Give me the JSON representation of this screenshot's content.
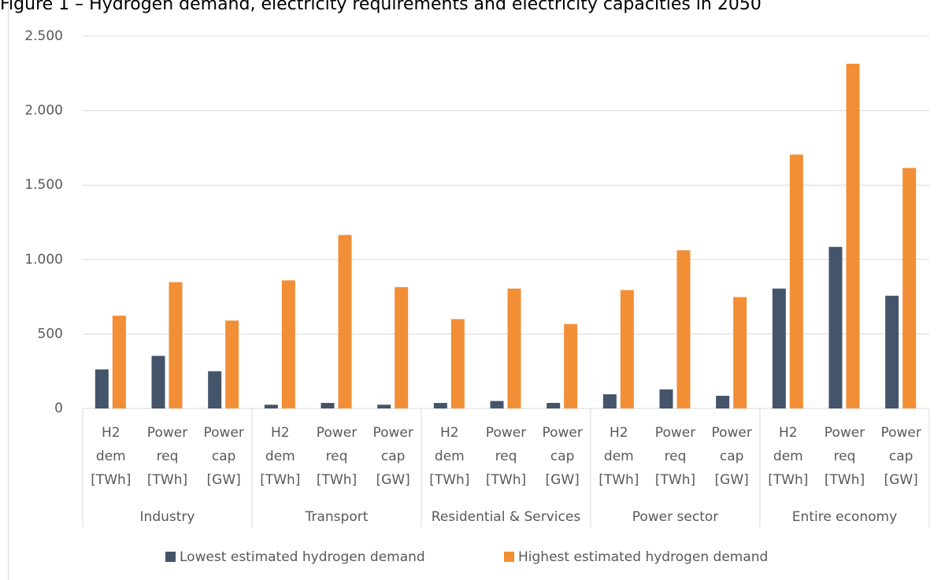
{
  "chart_data": {
    "type": "bar",
    "title": "Figure 1 – Hydrogen demand, electricity requirements and electricity capacities in 2050",
    "groups": [
      "Industry",
      "Transport",
      "Residential & Services",
      "Power sector",
      "Entire economy"
    ],
    "categories": [
      "H2 dem [TWh]",
      "Power req [TWh]",
      "Power cap [GW]",
      "H2 dem [TWh]",
      "Power req [TWh]",
      "Power cap [GW]",
      "H2 dem [TWh]",
      "Power req [TWh]",
      "Power cap [GW]",
      "H2 dem [TWh]",
      "Power req [TWh]",
      "Power cap [GW]",
      "H2 dem [TWh]",
      "Power req [TWh]",
      "Power cap [GW]"
    ],
    "series": [
      {
        "name": "Lowest estimated hydrogen demand",
        "color": "#44546a",
        "values": [
          262,
          353,
          250,
          25,
          37,
          25,
          37,
          50,
          37,
          95,
          128,
          85,
          805,
          1085,
          757
        ]
      },
      {
        "name": "Highest estimated hydrogen demand",
        "color": "#f28e35",
        "values": [
          623,
          848,
          590,
          860,
          1165,
          815,
          600,
          805,
          567,
          795,
          1062,
          748,
          1705,
          2315,
          1615
        ]
      }
    ],
    "ylim": [
      0,
      2500
    ],
    "yticks": [
      0,
      500,
      {
        "value": 1000,
        "label": "1.000"
      },
      {
        "value": 1500,
        "label": "1.500"
      },
      {
        "value": 2000,
        "label": "2.000"
      },
      {
        "value": 2500,
        "label": "2.500"
      }
    ],
    "grid": true,
    "legend": "bottom"
  }
}
